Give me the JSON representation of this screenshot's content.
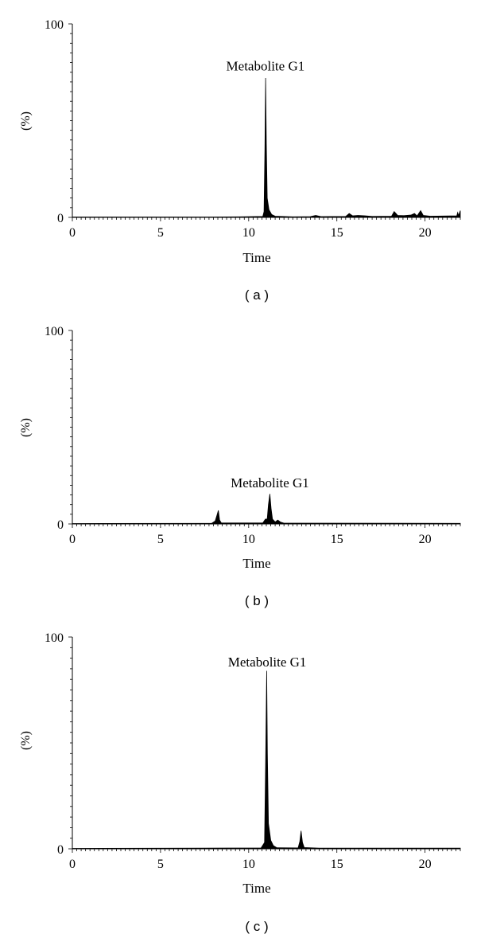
{
  "chart_data": [
    {
      "type": "area",
      "panel_label": "( a )",
      "xlabel": "Time",
      "ylabel": "(%)",
      "xlim": [
        0,
        22
      ],
      "ylim": [
        0,
        100
      ],
      "xticks": [
        0,
        5,
        10,
        15,
        20
      ],
      "yticks": [
        0,
        100
      ],
      "annotation": {
        "text": "Metabolite G1",
        "x": 10.95,
        "y": 76
      },
      "series": [
        {
          "values": [
            [
              0,
              0.2
            ],
            [
              8.0,
              0.2
            ],
            [
              9.5,
              0.3
            ],
            [
              10.8,
              0.5
            ],
            [
              10.87,
              3
            ],
            [
              10.92,
              35
            ],
            [
              10.96,
              72
            ],
            [
              11.0,
              38
            ],
            [
              11.05,
              10
            ],
            [
              11.15,
              4
            ],
            [
              11.3,
              1.5
            ],
            [
              11.5,
              0.6
            ],
            [
              12.5,
              0.3
            ],
            [
              13.5,
              0.4
            ],
            [
              13.8,
              1.0
            ],
            [
              14.1,
              0.4
            ],
            [
              15.5,
              0.5
            ],
            [
              15.7,
              2.0
            ],
            [
              15.9,
              0.8
            ],
            [
              16.2,
              1.0
            ],
            [
              16.6,
              0.8
            ],
            [
              17.0,
              0.5
            ],
            [
              18.1,
              0.6
            ],
            [
              18.25,
              3.0
            ],
            [
              18.45,
              1.0
            ],
            [
              18.8,
              0.9
            ],
            [
              19.2,
              1.2
            ],
            [
              19.4,
              2.0
            ],
            [
              19.55,
              0.8
            ],
            [
              19.75,
              3.5
            ],
            [
              19.9,
              1.0
            ],
            [
              20.3,
              0.6
            ],
            [
              21.8,
              0.8
            ],
            [
              21.85,
              2.5
            ],
            [
              21.9,
              0.9
            ],
            [
              22.0,
              3.5
            ]
          ]
        }
      ]
    },
    {
      "type": "area",
      "panel_label": "( b )",
      "xlabel": "Time",
      "ylabel": "(%)",
      "xlim": [
        0,
        22
      ],
      "ylim": [
        0,
        100
      ],
      "xticks": [
        0,
        5,
        10,
        15,
        20
      ],
      "yticks": [
        0,
        100
      ],
      "annotation": {
        "text": "Metabolite G1",
        "x": 11.2,
        "y": 19
      },
      "series": [
        {
          "values": [
            [
              0,
              0.2
            ],
            [
              7.9,
              0.3
            ],
            [
              8.1,
              1.5
            ],
            [
              8.2,
              4.5
            ],
            [
              8.28,
              7.0
            ],
            [
              8.35,
              2.0
            ],
            [
              8.45,
              0.5
            ],
            [
              10.8,
              0.5
            ],
            [
              10.95,
              2.5
            ],
            [
              11.05,
              2.5
            ],
            [
              11.12,
              10
            ],
            [
              11.2,
              15.5
            ],
            [
              11.27,
              8
            ],
            [
              11.35,
              2.5
            ],
            [
              11.5,
              1.0
            ],
            [
              11.65,
              2.0
            ],
            [
              11.8,
              1.0
            ],
            [
              12.0,
              0.4
            ],
            [
              22,
              0.3
            ]
          ]
        }
      ]
    },
    {
      "type": "area",
      "panel_label": "( c )",
      "xlabel": "Time",
      "ylabel": "(%)",
      "xlim": [
        0,
        22
      ],
      "ylim": [
        0,
        100
      ],
      "xticks": [
        0,
        5,
        10,
        15,
        20
      ],
      "yticks": [
        0,
        100
      ],
      "annotation": {
        "text": "Metabolite G1",
        "x": 11.05,
        "y": 86
      },
      "series": [
        {
          "values": [
            [
              0,
              0.2
            ],
            [
              10.7,
              0.4
            ],
            [
              10.9,
              3
            ],
            [
              10.96,
              40
            ],
            [
              11.02,
              84
            ],
            [
              11.06,
              45
            ],
            [
              11.12,
              12
            ],
            [
              11.25,
              4
            ],
            [
              11.4,
              1.5
            ],
            [
              11.6,
              0.5
            ],
            [
              12.8,
              0.4
            ],
            [
              12.9,
              3.5
            ],
            [
              12.97,
              8.5
            ],
            [
              13.05,
              3.0
            ],
            [
              13.15,
              0.6
            ],
            [
              14,
              0.3
            ],
            [
              22,
              0.3
            ]
          ]
        }
      ]
    }
  ],
  "colors": {
    "fill": "#000000",
    "axis": "#000000",
    "background": "#ffffff"
  }
}
